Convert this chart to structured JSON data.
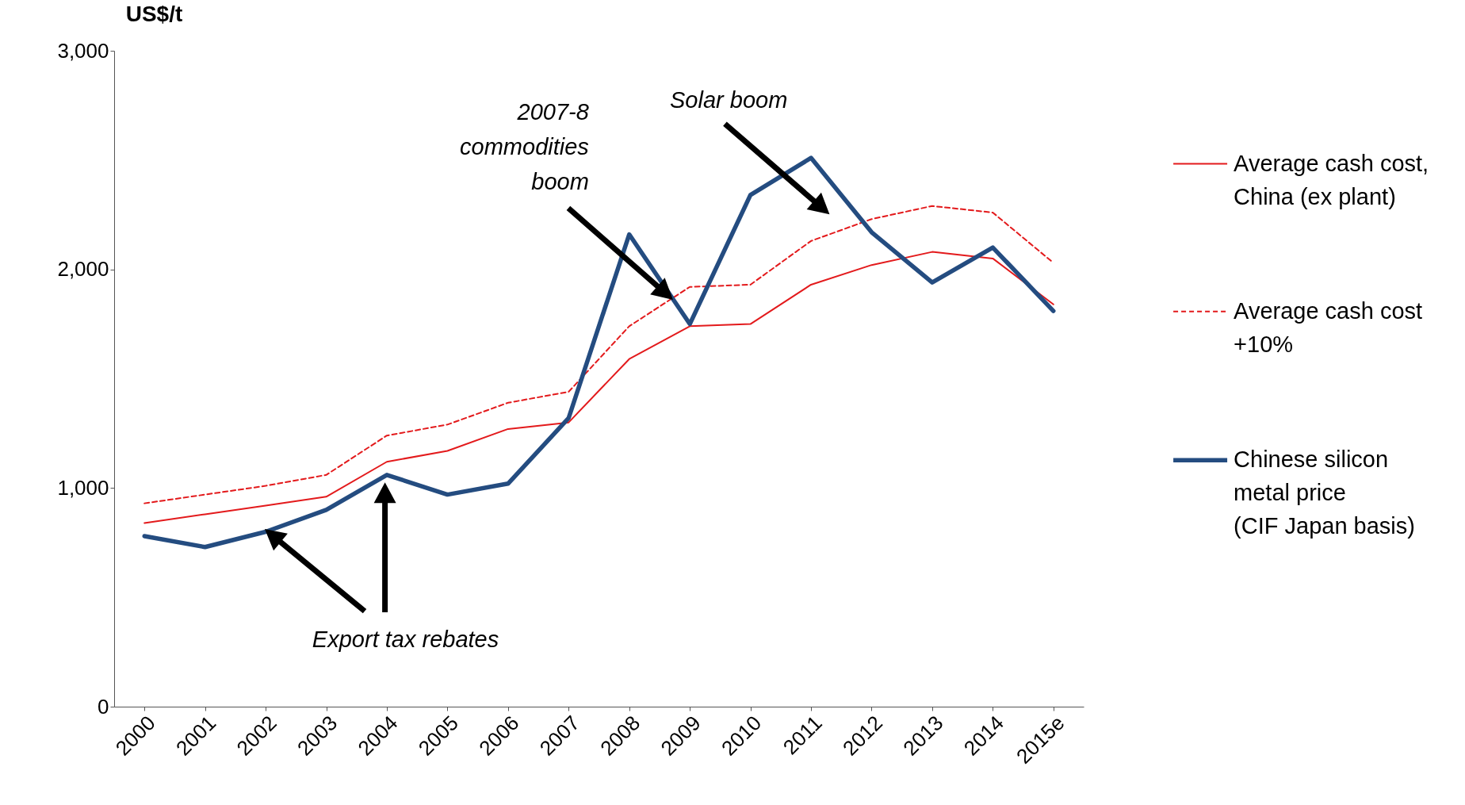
{
  "chart_data": {
    "type": "line",
    "ylabel": "US$/t",
    "categories": [
      "2000",
      "2001",
      "2002",
      "2003",
      "2004",
      "2005",
      "2006",
      "2007",
      "2008",
      "2009",
      "2010",
      "2011",
      "2012",
      "2013",
      "2014",
      "2015e"
    ],
    "series": [
      {
        "name": "Average cash cost, China (ex plant)",
        "color": "#e31a1c",
        "line_style": "solid",
        "values": [
          840,
          880,
          920,
          960,
          1120,
          1170,
          1270,
          1300,
          1590,
          1740,
          1750,
          1930,
          2020,
          2080,
          2050,
          1840
        ]
      },
      {
        "name": "Average cash cost +10%",
        "color": "#e31a1c",
        "line_style": "dashed",
        "values": [
          930,
          970,
          1010,
          1060,
          1240,
          1290,
          1390,
          1440,
          1740,
          1920,
          1930,
          2130,
          2230,
          2290,
          2260,
          2030
        ]
      },
      {
        "name": "Chinese silicon metal price (CIF Japan basis)",
        "color": "#244c80",
        "line_style": "solid",
        "values": [
          780,
          730,
          800,
          900,
          1060,
          970,
          1020,
          1320,
          2160,
          1750,
          2340,
          2510,
          2170,
          1940,
          2100,
          1810
        ]
      }
    ],
    "ylim": [
      0,
      3000
    ],
    "yticks": [
      {
        "value": 0,
        "label": "0"
      },
      {
        "value": 1000,
        "label": "1,000"
      },
      {
        "value": 2000,
        "label": "2,000"
      },
      {
        "value": 3000,
        "label": "3,000"
      }
    ],
    "grid": false,
    "legend": "right",
    "marker": "none",
    "annotations": [
      "Export tax rebates",
      "2007-8 commodities boom",
      "Solar boom"
    ]
  }
}
